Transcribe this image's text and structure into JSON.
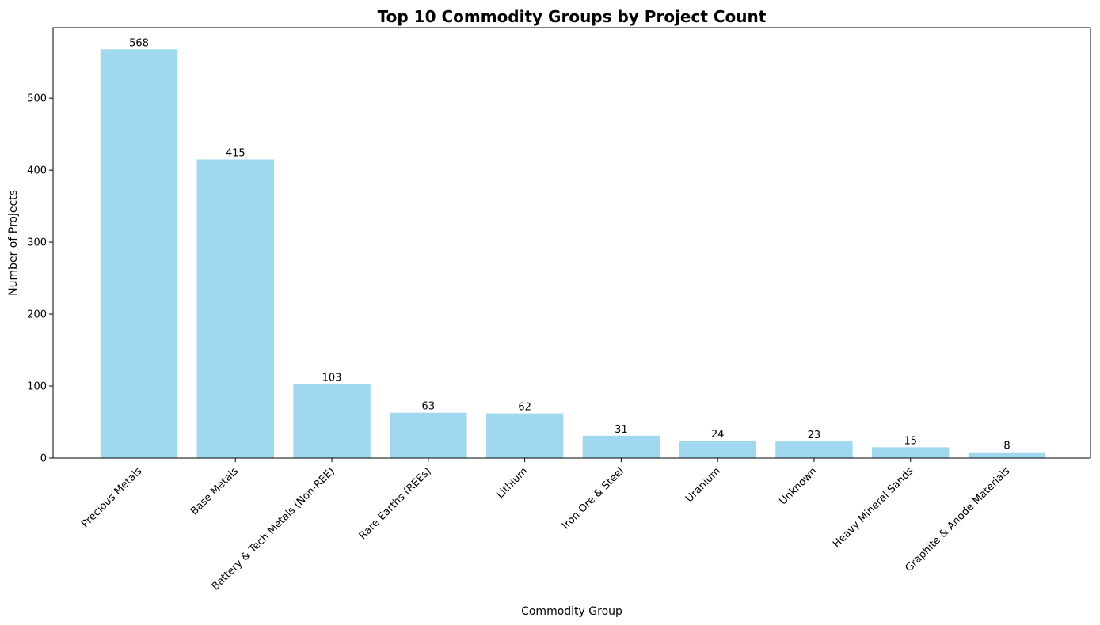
{
  "chart_data": {
    "type": "bar",
    "title": "Top 10 Commodity Groups by Project Count",
    "xlabel": "Commodity Group",
    "ylabel": "Number of Projects",
    "categories": [
      "Precious Metals",
      "Base Metals",
      "Battery & Tech Metals (Non-REE)",
      "Rare Earths (REEs)",
      "Lithium",
      "Iron Ore & Steel",
      "Uranium",
      "Unknown",
      "Heavy Mineral Sands",
      "Graphite & Anode Materials"
    ],
    "values": [
      568,
      415,
      103,
      63,
      62,
      31,
      24,
      23,
      15,
      8
    ],
    "ylim": [
      0,
      598
    ],
    "yticks": [
      0,
      100,
      200,
      300,
      400,
      500
    ],
    "grid": false,
    "legend": "none",
    "bar_color": "#87ceeb",
    "x_tick_rotation": 45
  }
}
